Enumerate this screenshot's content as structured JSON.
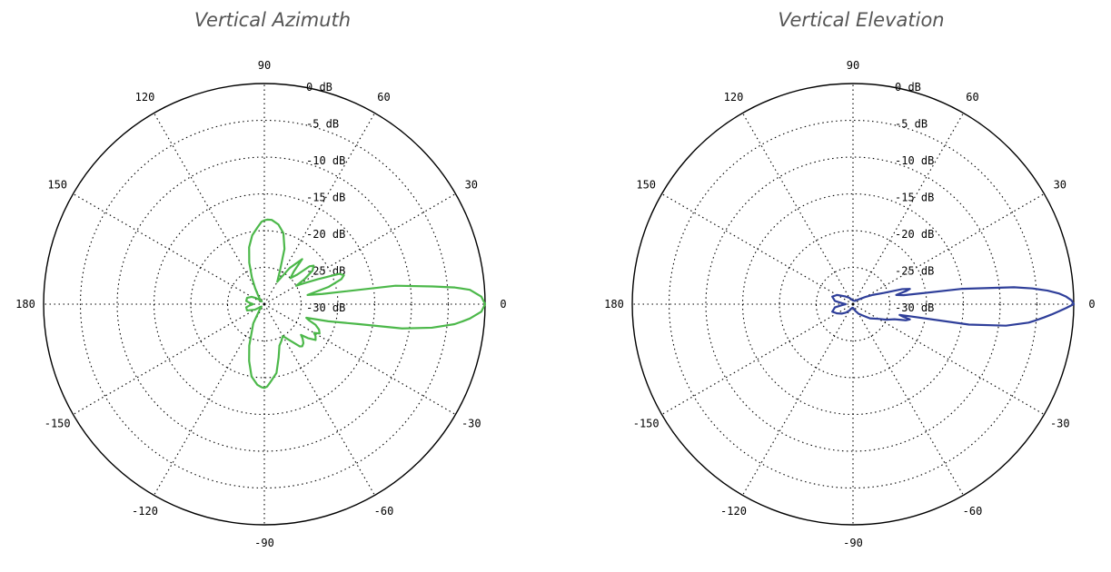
{
  "chart_data": [
    {
      "type": "polar",
      "title": "Vertical Azimuth",
      "color": "#4cb84a",
      "angle_labels": [
        "0",
        "30",
        "60",
        "90",
        "120",
        "150",
        "180",
        "-150",
        "-120",
        "-90",
        "-60",
        "-30"
      ],
      "angle_values": [
        0,
        30,
        60,
        90,
        120,
        150,
        180,
        -150,
        -120,
        -90,
        -60,
        -30
      ],
      "ring_labels": [
        "0 dB",
        "-5 dB",
        "-10 dB",
        "-15 dB",
        "-20 dB",
        "-25 dB",
        "-30 dB"
      ],
      "rlim": [
        -30,
        0
      ],
      "grid": true,
      "series": [
        {
          "theta": [
            0,
            2,
            4,
            5,
            6,
            8,
            10,
            12,
            15,
            18,
            20,
            22,
            25,
            28,
            30,
            32,
            35,
            38,
            40,
            42,
            45,
            48,
            50,
            55,
            60,
            65,
            70,
            75,
            80,
            85,
            88,
            90,
            92,
            95,
            100,
            105,
            110,
            115,
            120,
            125,
            130,
            135,
            140,
            145,
            150,
            160,
            170,
            175,
            180,
            185,
            190,
            200,
            210,
            220,
            230,
            240,
            250,
            255,
            260,
            265,
            268,
            270,
            272,
            275,
            280,
            285,
            290,
            295,
            300,
            305,
            310,
            312,
            315,
            318,
            320,
            322,
            325,
            328,
            330,
            332,
            335,
            338,
            340,
            342,
            345,
            348,
            350,
            352,
            354,
            355,
            356,
            358,
            360
          ],
          "r": [
            0,
            -0.5,
            -2,
            -4,
            -7,
            -12,
            -22,
            -24,
            -21,
            -19,
            -18.5,
            -19,
            -22,
            -24,
            -25,
            -23.5,
            -22,
            -21.5,
            -22,
            -24,
            -25,
            -24,
            -22,
            -24,
            -26.5,
            -25,
            -22,
            -20,
            -19,
            -18.5,
            -18.5,
            -18.6,
            -18.8,
            -19.5,
            -20.5,
            -22,
            -24,
            -26,
            -27.5,
            -28.5,
            -29,
            -29.5,
            -29,
            -28.5,
            -28,
            -27.5,
            -27.5,
            -28,
            -28.5,
            -28,
            -27.5,
            -27.5,
            -28.5,
            -29.5,
            -29,
            -27,
            -24,
            -22,
            -20,
            -19,
            -18.7,
            -18.6,
            -18.8,
            -19.5,
            -20.5,
            -22.5,
            -24,
            -24.5,
            -25,
            -24,
            -22.5,
            -22.3,
            -22.5,
            -23,
            -23.5,
            -22.5,
            -21.5,
            -21.8,
            -22.2,
            -21.5,
            -21.8,
            -22.5,
            -23.5,
            -24,
            -21,
            -17,
            -11,
            -7,
            -4,
            -3,
            -2,
            -0.5,
            0
          ]
        }
      ]
    },
    {
      "type": "polar",
      "title": "Vertical Elevation",
      "color": "#2f3f9a",
      "angle_labels": [
        "0",
        "30",
        "60",
        "90",
        "120",
        "150",
        "180",
        "-150",
        "-120",
        "-90",
        "-60",
        "-30"
      ],
      "angle_values": [
        0,
        30,
        60,
        90,
        120,
        150,
        180,
        -150,
        -120,
        -90,
        -60,
        -30
      ],
      "ring_labels": [
        "0 dB",
        "-5 dB",
        "-10 dB",
        "-15 dB",
        "-20 dB",
        "-25 dB",
        "-30 dB"
      ],
      "rlim": [
        -30,
        0
      ],
      "grid": true,
      "series": [
        {
          "theta": [
            0,
            1,
            2,
            3,
            4,
            5,
            6,
            8,
            10,
            12,
            14,
            15,
            17,
            20,
            25,
            30,
            40,
            60,
            90,
            120,
            135,
            150,
            160,
            170,
            175,
            180,
            185,
            190,
            200,
            210,
            220,
            230,
            240,
            260,
            270,
            290,
            300,
            310,
            320,
            330,
            335,
            340,
            343,
            345,
            346,
            347,
            348,
            350,
            352,
            354,
            355,
            356,
            357,
            358,
            359,
            360
          ],
          "r": [
            0,
            -0.3,
            -1,
            -2,
            -3.5,
            -5.5,
            -8,
            -15,
            -23,
            -24,
            -22.5,
            -22,
            -23,
            -25.5,
            -27,
            -28,
            -29,
            -29.5,
            -29.5,
            -29,
            -28.5,
            -27.5,
            -27,
            -27.5,
            -28.5,
            -29,
            -28.5,
            -27.5,
            -27,
            -27.5,
            -28,
            -28.5,
            -29,
            -29.5,
            -29.5,
            -29,
            -28.5,
            -28,
            -27,
            -26,
            -25,
            -24,
            -22.5,
            -22,
            -23,
            -23.5,
            -22,
            -14,
            -9,
            -6,
            -5,
            -4,
            -3,
            -2,
            -1,
            0
          ]
        }
      ]
    }
  ]
}
